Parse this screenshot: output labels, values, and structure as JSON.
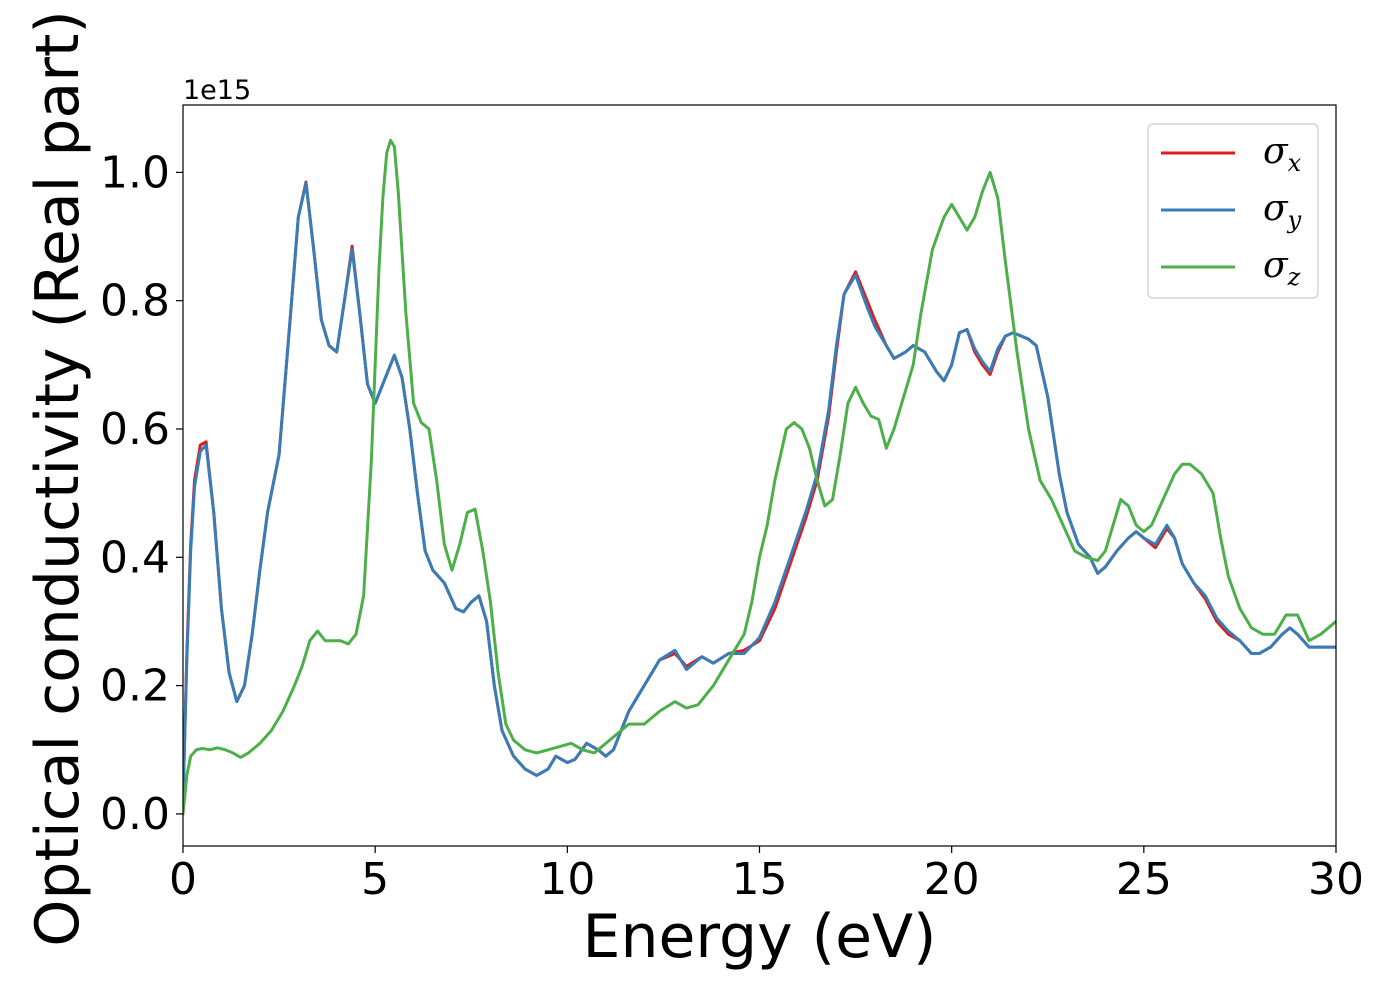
{
  "chart_data": {
    "type": "line",
    "title": "",
    "xlabel": "Energy (eV)",
    "ylabel": "Optical conductivity (Real part)",
    "y_offset_label": "1e15",
    "xlim": [
      0,
      30
    ],
    "ylim": [
      -0.05,
      1.105
    ],
    "xticks": [
      0,
      5,
      10,
      15,
      20,
      25,
      30
    ],
    "xtick_labels": [
      "0",
      "5",
      "10",
      "15",
      "20",
      "25",
      "30"
    ],
    "yticks": [
      0.0,
      0.2,
      0.4,
      0.6,
      0.8,
      1.0
    ],
    "ytick_labels": [
      "0.0",
      "0.2",
      "0.4",
      "0.6",
      "0.8",
      "1.0"
    ],
    "grid": false,
    "legend_position": "top-right",
    "series": [
      {
        "name": "σx",
        "legend_main": "σ",
        "legend_sub": "x",
        "color": "#e41a1c",
        "x": [
          0,
          0.1,
          0.2,
          0.3,
          0.45,
          0.6,
          0.8,
          1.0,
          1.2,
          1.4,
          1.6,
          1.8,
          2.0,
          2.2,
          2.5,
          2.8,
          3.0,
          3.2,
          3.4,
          3.6,
          3.8,
          4.0,
          4.2,
          4.4,
          4.6,
          4.8,
          5.0,
          5.2,
          5.5,
          5.7,
          5.9,
          6.1,
          6.3,
          6.5,
          6.8,
          7.1,
          7.3,
          7.5,
          7.7,
          7.9,
          8.1,
          8.3,
          8.6,
          8.9,
          9.2,
          9.5,
          9.7,
          10.0,
          10.2,
          10.5,
          10.8,
          11.0,
          11.2,
          11.6,
          12.0,
          12.4,
          12.8,
          13.1,
          13.5,
          13.8,
          14.2,
          14.6,
          15.0,
          15.4,
          15.8,
          16.2,
          16.5,
          16.8,
          17.0,
          17.2,
          17.5,
          17.8,
          18.0,
          18.3,
          18.5,
          18.8,
          19.0,
          19.3,
          19.6,
          19.8,
          20.0,
          20.2,
          20.4,
          20.6,
          20.8,
          21.0,
          21.2,
          21.4,
          21.6,
          22.0,
          22.2,
          22.5,
          22.8,
          23.0,
          23.3,
          23.6,
          23.8,
          24.0,
          24.3,
          24.6,
          24.8,
          25.0,
          25.3,
          25.6,
          25.8,
          26.0,
          26.3,
          26.6,
          26.9,
          27.2,
          27.5,
          27.8,
          28.0,
          28.3,
          28.6,
          28.8,
          29.0,
          29.3,
          29.6,
          30.0
        ],
        "y": [
          0.02,
          0.25,
          0.42,
          0.52,
          0.575,
          0.58,
          0.47,
          0.32,
          0.22,
          0.175,
          0.2,
          0.28,
          0.38,
          0.47,
          0.56,
          0.78,
          0.93,
          0.985,
          0.88,
          0.77,
          0.73,
          0.72,
          0.8,
          0.885,
          0.78,
          0.67,
          0.64,
          0.67,
          0.715,
          0.68,
          0.6,
          0.5,
          0.41,
          0.38,
          0.36,
          0.32,
          0.315,
          0.33,
          0.34,
          0.3,
          0.2,
          0.13,
          0.09,
          0.07,
          0.06,
          0.07,
          0.09,
          0.08,
          0.085,
          0.11,
          0.1,
          0.09,
          0.1,
          0.16,
          0.2,
          0.24,
          0.25,
          0.23,
          0.245,
          0.235,
          0.25,
          0.255,
          0.27,
          0.32,
          0.39,
          0.46,
          0.52,
          0.62,
          0.72,
          0.81,
          0.845,
          0.8,
          0.77,
          0.73,
          0.71,
          0.72,
          0.73,
          0.72,
          0.69,
          0.675,
          0.7,
          0.75,
          0.755,
          0.72,
          0.7,
          0.685,
          0.72,
          0.745,
          0.75,
          0.74,
          0.73,
          0.65,
          0.53,
          0.47,
          0.42,
          0.4,
          0.375,
          0.385,
          0.41,
          0.43,
          0.44,
          0.43,
          0.415,
          0.445,
          0.43,
          0.39,
          0.36,
          0.335,
          0.3,
          0.28,
          0.27,
          0.25,
          0.25,
          0.26,
          0.28,
          0.29,
          0.28,
          0.26,
          0.26,
          0.26
        ]
      },
      {
        "name": "σy",
        "legend_main": "σ",
        "legend_sub": "y",
        "color": "#377eb8",
        "x": [
          0,
          0.1,
          0.2,
          0.3,
          0.45,
          0.6,
          0.8,
          1.0,
          1.2,
          1.4,
          1.6,
          1.8,
          2.0,
          2.2,
          2.5,
          2.8,
          3.0,
          3.2,
          3.4,
          3.6,
          3.8,
          4.0,
          4.2,
          4.4,
          4.6,
          4.8,
          5.0,
          5.2,
          5.5,
          5.7,
          5.9,
          6.1,
          6.3,
          6.5,
          6.8,
          7.1,
          7.3,
          7.5,
          7.7,
          7.9,
          8.1,
          8.3,
          8.6,
          8.9,
          9.2,
          9.5,
          9.7,
          10.0,
          10.2,
          10.5,
          10.8,
          11.0,
          11.2,
          11.6,
          12.0,
          12.4,
          12.8,
          13.1,
          13.5,
          13.8,
          14.2,
          14.6,
          15.0,
          15.4,
          15.8,
          16.2,
          16.5,
          16.8,
          17.0,
          17.2,
          17.5,
          17.8,
          18.0,
          18.3,
          18.5,
          18.8,
          19.0,
          19.3,
          19.6,
          19.8,
          20.0,
          20.2,
          20.4,
          20.6,
          20.8,
          21.0,
          21.2,
          21.4,
          21.6,
          22.0,
          22.2,
          22.5,
          22.8,
          23.0,
          23.3,
          23.6,
          23.8,
          24.0,
          24.3,
          24.6,
          24.8,
          25.0,
          25.3,
          25.6,
          25.8,
          26.0,
          26.3,
          26.6,
          26.9,
          27.2,
          27.5,
          27.8,
          28.0,
          28.3,
          28.6,
          28.8,
          29.0,
          29.3,
          29.6,
          30.0
        ],
        "y": [
          0.02,
          0.24,
          0.41,
          0.51,
          0.565,
          0.575,
          0.47,
          0.32,
          0.22,
          0.175,
          0.2,
          0.28,
          0.38,
          0.47,
          0.56,
          0.78,
          0.93,
          0.983,
          0.88,
          0.77,
          0.73,
          0.72,
          0.8,
          0.88,
          0.78,
          0.67,
          0.64,
          0.67,
          0.715,
          0.68,
          0.6,
          0.5,
          0.41,
          0.38,
          0.36,
          0.32,
          0.315,
          0.33,
          0.34,
          0.3,
          0.2,
          0.13,
          0.09,
          0.07,
          0.06,
          0.07,
          0.09,
          0.08,
          0.085,
          0.11,
          0.1,
          0.09,
          0.1,
          0.16,
          0.2,
          0.24,
          0.255,
          0.225,
          0.245,
          0.235,
          0.25,
          0.25,
          0.275,
          0.33,
          0.4,
          0.47,
          0.53,
          0.63,
          0.73,
          0.81,
          0.84,
          0.79,
          0.76,
          0.73,
          0.71,
          0.72,
          0.73,
          0.72,
          0.69,
          0.675,
          0.7,
          0.75,
          0.755,
          0.725,
          0.705,
          0.69,
          0.725,
          0.745,
          0.75,
          0.74,
          0.73,
          0.65,
          0.53,
          0.47,
          0.42,
          0.4,
          0.375,
          0.385,
          0.41,
          0.43,
          0.44,
          0.43,
          0.42,
          0.45,
          0.43,
          0.39,
          0.36,
          0.34,
          0.305,
          0.285,
          0.27,
          0.25,
          0.25,
          0.26,
          0.28,
          0.29,
          0.28,
          0.26,
          0.26,
          0.26
        ]
      },
      {
        "name": "σz",
        "legend_main": "σ",
        "legend_sub": "z",
        "color": "#4daf4a",
        "x": [
          0,
          0.1,
          0.2,
          0.35,
          0.5,
          0.7,
          0.9,
          1.1,
          1.3,
          1.5,
          1.7,
          2.0,
          2.3,
          2.6,
          2.9,
          3.1,
          3.3,
          3.5,
          3.7,
          3.9,
          4.1,
          4.3,
          4.5,
          4.7,
          4.9,
          5.0,
          5.1,
          5.2,
          5.3,
          5.4,
          5.5,
          5.6,
          5.8,
          6.0,
          6.2,
          6.4,
          6.6,
          6.8,
          7.0,
          7.2,
          7.4,
          7.6,
          7.8,
          8.0,
          8.2,
          8.4,
          8.6,
          8.9,
          9.2,
          9.5,
          9.8,
          10.1,
          10.4,
          10.7,
          11.0,
          11.3,
          11.6,
          12.0,
          12.4,
          12.8,
          13.1,
          13.4,
          13.8,
          14.2,
          14.6,
          14.8,
          15.0,
          15.2,
          15.4,
          15.7,
          15.9,
          16.1,
          16.3,
          16.5,
          16.7,
          16.9,
          17.1,
          17.3,
          17.5,
          17.7,
          17.9,
          18.1,
          18.3,
          18.5,
          18.7,
          19.0,
          19.2,
          19.5,
          19.8,
          20.0,
          20.2,
          20.4,
          20.6,
          20.8,
          21.0,
          21.2,
          21.4,
          21.7,
          22.0,
          22.3,
          22.6,
          22.9,
          23.2,
          23.5,
          23.8,
          24.0,
          24.2,
          24.4,
          24.6,
          24.8,
          25.0,
          25.2,
          25.5,
          25.8,
          26.0,
          26.2,
          26.5,
          26.8,
          27.0,
          27.2,
          27.5,
          27.8,
          28.1,
          28.4,
          28.7,
          29.0,
          29.3,
          29.6,
          30.0
        ],
        "y": [
          0.0,
          0.06,
          0.09,
          0.1,
          0.102,
          0.1,
          0.103,
          0.1,
          0.095,
          0.088,
          0.095,
          0.11,
          0.13,
          0.16,
          0.2,
          0.23,
          0.27,
          0.285,
          0.27,
          0.27,
          0.27,
          0.265,
          0.28,
          0.34,
          0.55,
          0.7,
          0.85,
          0.96,
          1.03,
          1.05,
          1.04,
          0.97,
          0.78,
          0.64,
          0.61,
          0.6,
          0.52,
          0.42,
          0.38,
          0.42,
          0.47,
          0.475,
          0.41,
          0.33,
          0.22,
          0.14,
          0.115,
          0.1,
          0.095,
          0.1,
          0.105,
          0.11,
          0.1,
          0.095,
          0.11,
          0.125,
          0.14,
          0.14,
          0.16,
          0.175,
          0.165,
          0.17,
          0.2,
          0.24,
          0.28,
          0.33,
          0.4,
          0.45,
          0.52,
          0.6,
          0.61,
          0.6,
          0.57,
          0.52,
          0.48,
          0.49,
          0.56,
          0.64,
          0.665,
          0.64,
          0.62,
          0.615,
          0.57,
          0.6,
          0.64,
          0.7,
          0.78,
          0.88,
          0.93,
          0.95,
          0.93,
          0.91,
          0.93,
          0.97,
          1.0,
          0.96,
          0.86,
          0.72,
          0.6,
          0.52,
          0.49,
          0.45,
          0.41,
          0.4,
          0.395,
          0.41,
          0.45,
          0.49,
          0.48,
          0.45,
          0.44,
          0.45,
          0.49,
          0.53,
          0.545,
          0.545,
          0.53,
          0.5,
          0.43,
          0.37,
          0.32,
          0.29,
          0.28,
          0.28,
          0.31,
          0.31,
          0.27,
          0.28,
          0.3
        ]
      }
    ]
  }
}
